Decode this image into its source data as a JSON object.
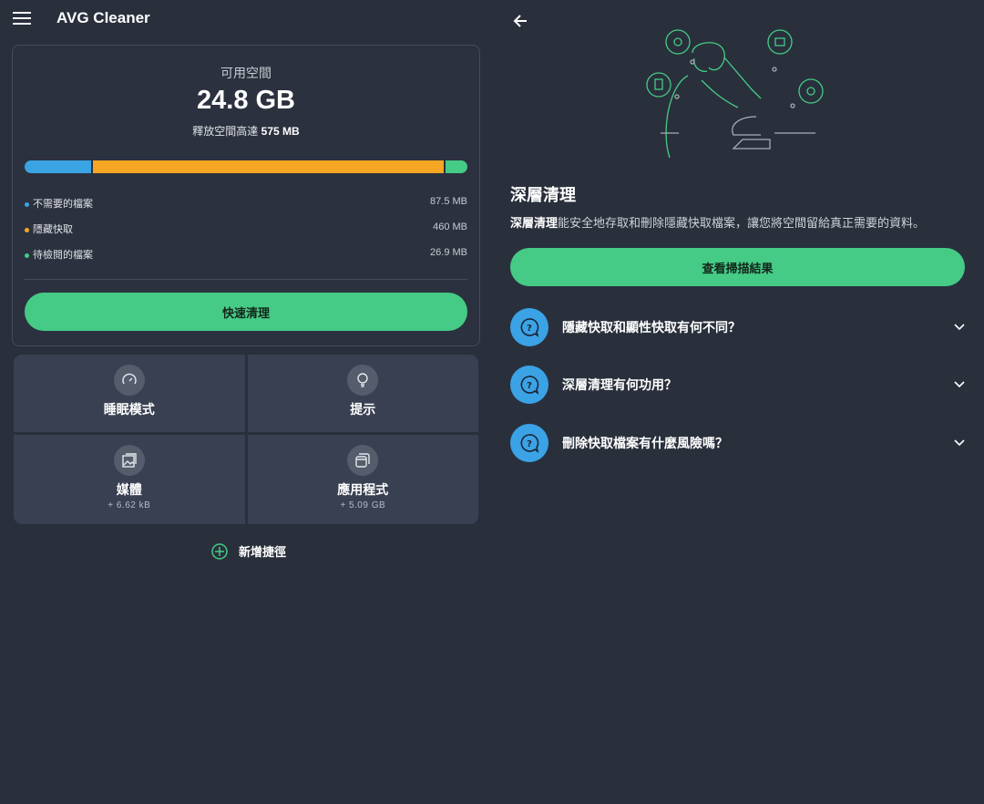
{
  "app": {
    "title": "AVG Cleaner"
  },
  "storage": {
    "available_label": "可用空間",
    "available_value": "24.8 GB",
    "free_up_prefix": "釋放空間高達",
    "free_up_value": "575 MB",
    "bar": [
      {
        "name": "不需要的檔案",
        "value_mb": 87.5,
        "color": "#3aa3e3"
      },
      {
        "name": "隱藏快取",
        "value_mb": 460,
        "color": "#f5a623"
      },
      {
        "name": "待檢閱的檔案",
        "value_mb": 26.9,
        "color": "#45cb85"
      }
    ],
    "legend": [
      {
        "label": "不需要的檔案",
        "value": "87.5 MB",
        "color": "#3aa3e3"
      },
      {
        "label": "隱藏快取",
        "value": "460 MB",
        "color": "#f5a623"
      },
      {
        "label": "待檢閱的檔案",
        "value": "26.9 MB",
        "color": "#45cb85"
      }
    ],
    "quick_clean": "快速清理"
  },
  "tiles": [
    {
      "label": "睡眠模式",
      "sub": "",
      "icon": "speedometer-icon"
    },
    {
      "label": "提示",
      "sub": "",
      "icon": "lightbulb-icon"
    },
    {
      "label": "媒體",
      "sub": "+ 6.62 kB",
      "icon": "image-icon"
    },
    {
      "label": "應用程式",
      "sub": "+ 5.09 GB",
      "icon": "apps-icon"
    }
  ],
  "add_shortcut": "新增捷徑",
  "deep_clean": {
    "title": "深層清理",
    "desc_bold": "深層清理",
    "desc_rest": "能安全地存取和刪除隱藏快取檔案，讓您將空間留給真正需要的資料。",
    "scan_button": "查看掃描結果",
    "faqs": [
      "隱藏快取和顯性快取有何不同？",
      "深層清理有何功用？",
      "刪除快取檔案有什麼風險嗎？"
    ]
  },
  "colors": {
    "accent": "#45cb85",
    "background": "#29303c",
    "faq_icon": "#3ba2e6"
  }
}
